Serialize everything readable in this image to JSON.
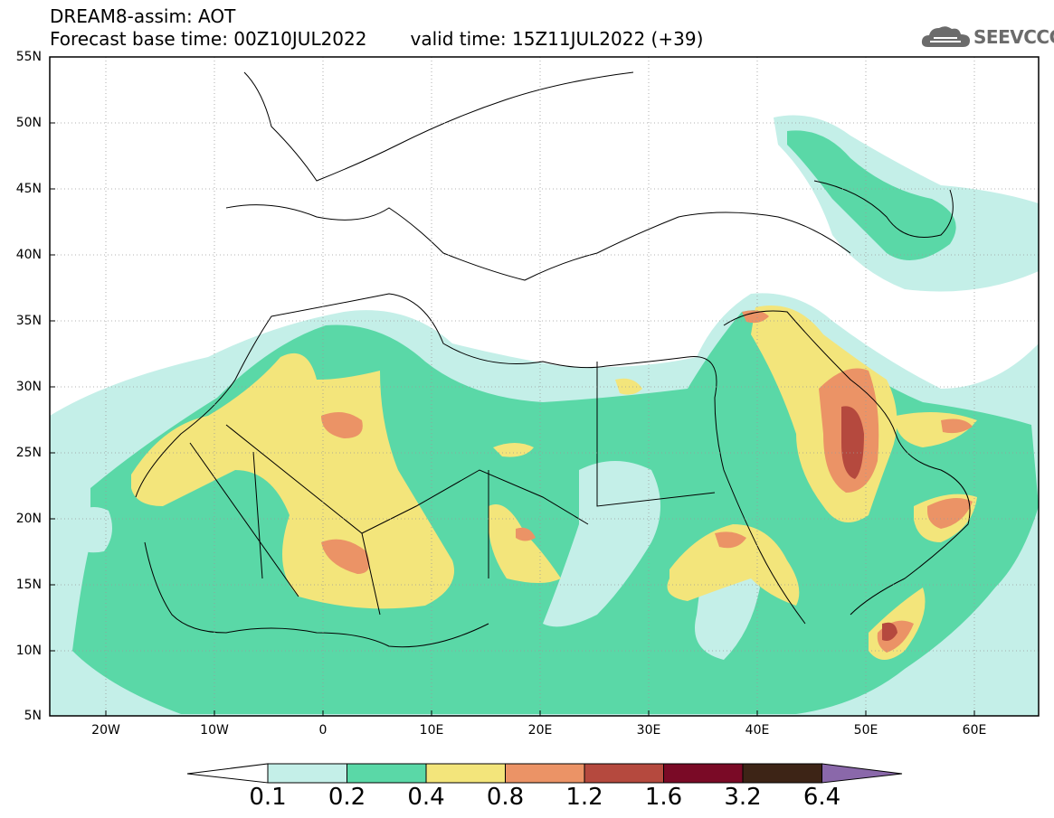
{
  "header": {
    "line1": "DREAM8-assim: AOT",
    "base_time": "Forecast base time: 00Z10JUL2022",
    "valid_time": "valid time: 15Z11JUL2022 (+39)"
  },
  "logo": {
    "text": "SEEVCCC",
    "icon": "cloud-icon"
  },
  "map": {
    "lat_ticks": [
      "55N",
      "50N",
      "45N",
      "40N",
      "35N",
      "30N",
      "25N",
      "20N",
      "15N",
      "10N",
      "5N"
    ],
    "lon_ticks": [
      "20W",
      "10W",
      "0",
      "10E",
      "20E",
      "30E",
      "40E",
      "50E",
      "60E"
    ]
  },
  "colorbar": {
    "labels": [
      "0.1",
      "0.2",
      "0.4",
      "0.8",
      "1.2",
      "1.6",
      "3.2",
      "6.4"
    ],
    "colors": [
      "#ffffff",
      "#c4efe8",
      "#5ad8a7",
      "#f3e57b",
      "#eb9366",
      "#b5493e",
      "#7a0a26",
      "#3d2416",
      "#8a68aa"
    ]
  }
}
